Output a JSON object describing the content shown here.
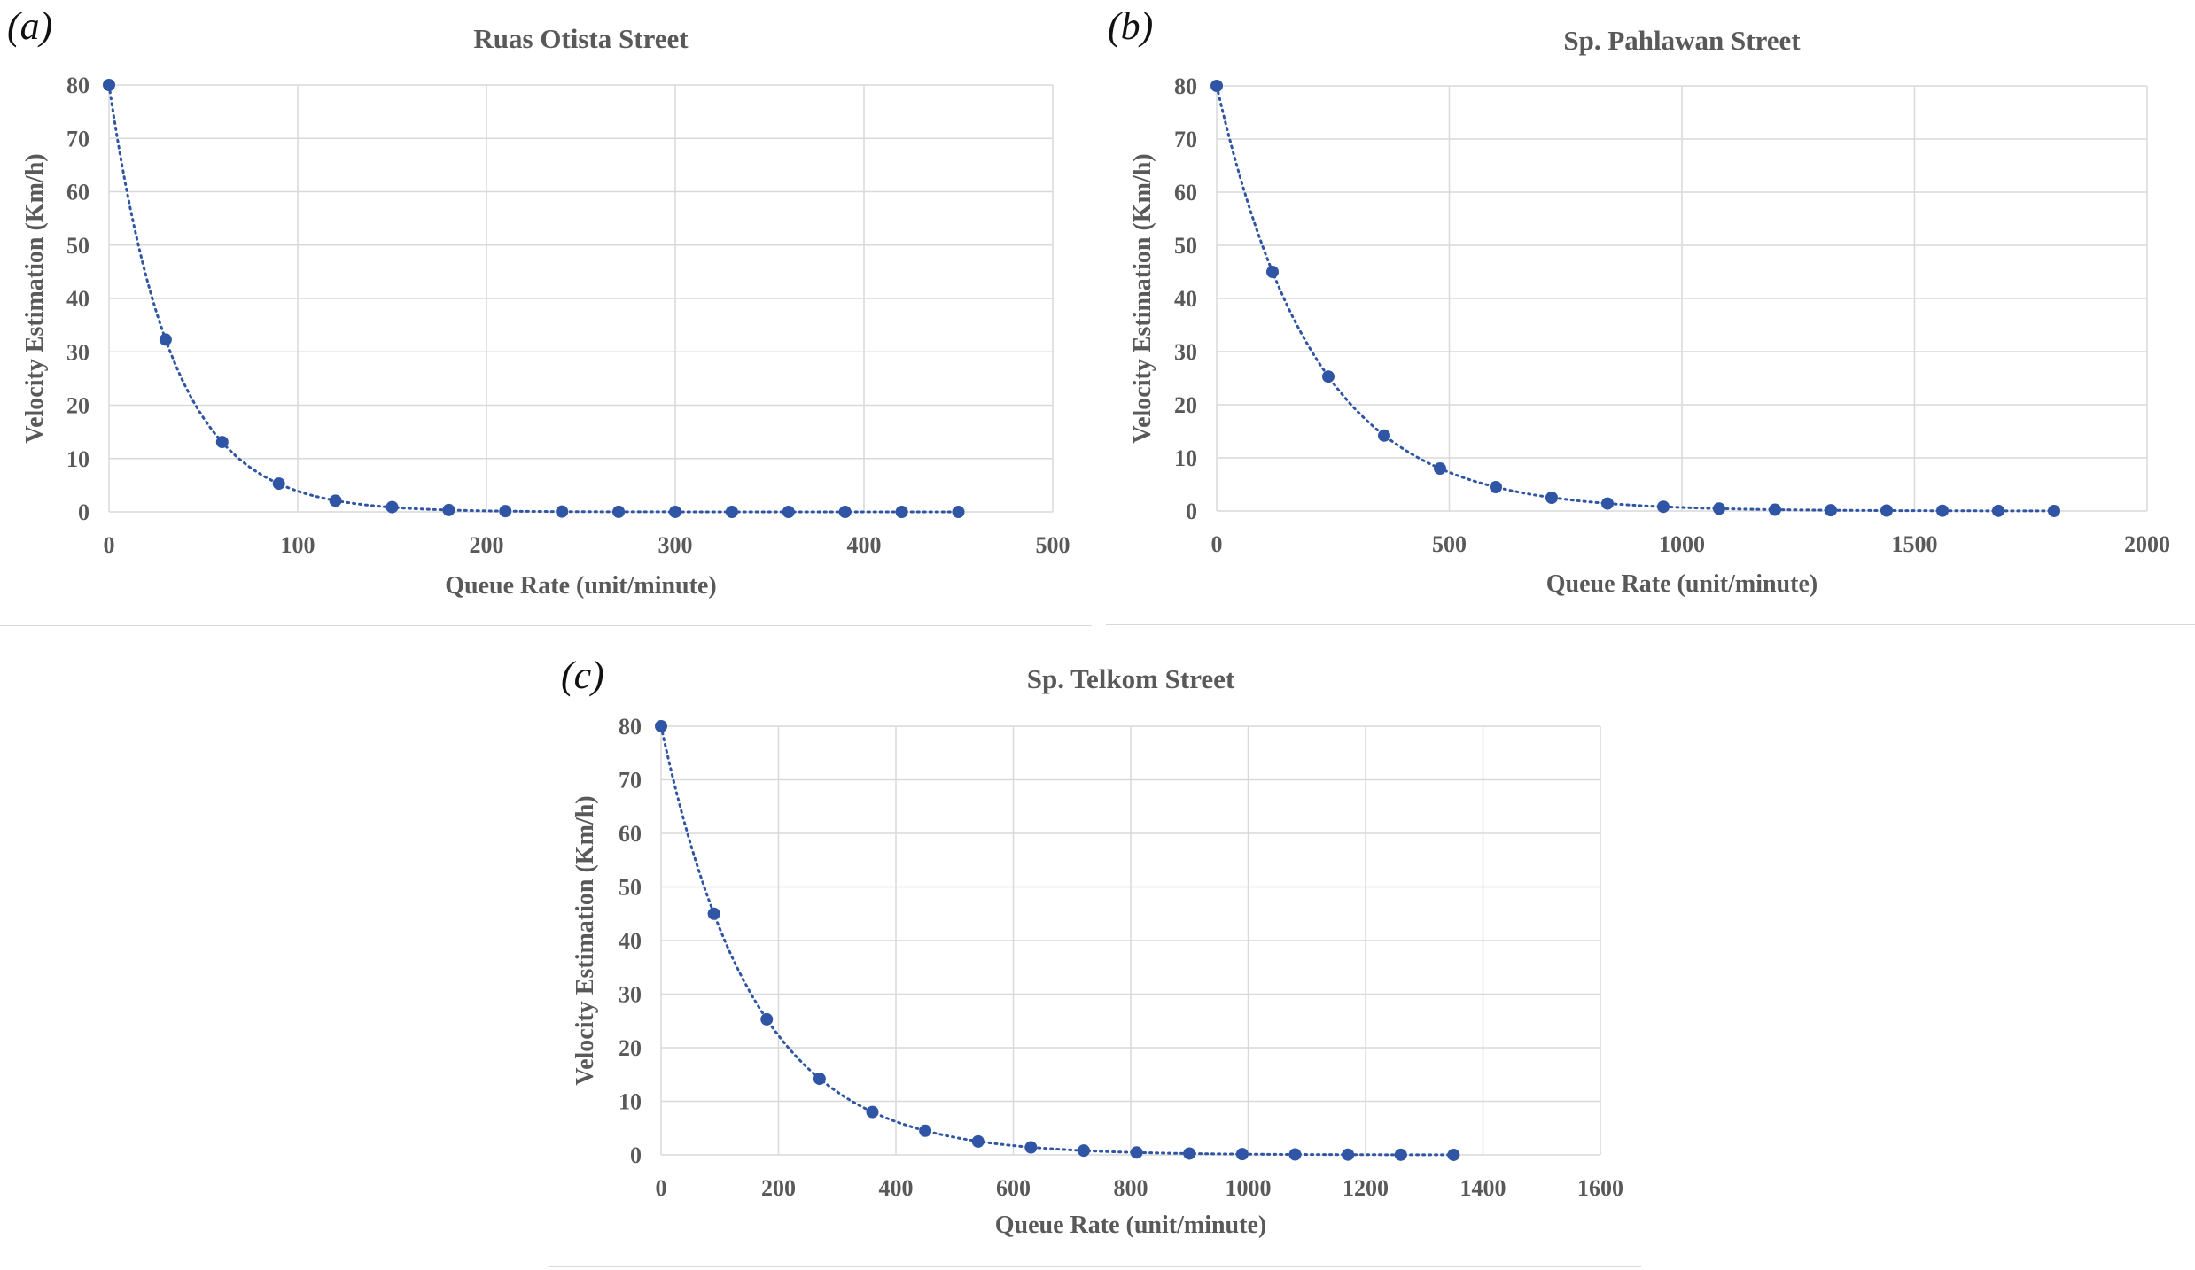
{
  "panels": [
    {
      "letter": "(a)",
      "chart_data": {
        "type": "scatter",
        "title": "Ruas Otista Street",
        "xlabel": "Queue Rate (unit/minute)",
        "ylabel": "Velocity Estimation (Km/h)",
        "xlim": [
          0,
          500
        ],
        "ylim": [
          0,
          80
        ],
        "xticks": [
          0,
          100,
          200,
          300,
          400,
          500
        ],
        "yticks": [
          0,
          10,
          20,
          30,
          40,
          50,
          60,
          70,
          80
        ],
        "grid": true,
        "trendline": "exponential, dotted",
        "series": [
          {
            "x": [
              0,
              30,
              60,
              90,
              120,
              150,
              180,
              210,
              240,
              270,
              300,
              330,
              360,
              390,
              420,
              450
            ],
            "y": [
              80,
              32.3,
              13.1,
              5.3,
              2.1,
              0.9,
              0.35,
              0.14,
              0.06,
              0.02,
              0.01,
              0,
              0,
              0,
              0,
              0
            ]
          }
        ]
      }
    },
    {
      "letter": "(b)",
      "chart_data": {
        "type": "scatter",
        "title": "Sp. Pahlawan Street",
        "xlabel": "Queue Rate (unit/minute)",
        "ylabel": "Velocity Estimation (Km/h)",
        "xlim": [
          0,
          2000
        ],
        "ylim": [
          0,
          80
        ],
        "xticks": [
          0,
          500,
          1000,
          1500,
          2000
        ],
        "yticks": [
          0,
          10,
          20,
          30,
          40,
          50,
          60,
          70,
          80
        ],
        "grid": true,
        "trendline": "exponential, dotted",
        "series": [
          {
            "x": [
              0,
              120,
              240,
              360,
              480,
              600,
              720,
              840,
              960,
              1080,
              1200,
              1320,
              1440,
              1560,
              1680,
              1800
            ],
            "y": [
              80,
              45,
              25.3,
              14.2,
              8,
              4.5,
              2.5,
              1.4,
              0.8,
              0.45,
              0.25,
              0.14,
              0.08,
              0.05,
              0.03,
              0.01
            ]
          }
        ]
      }
    },
    {
      "letter": "(c)",
      "chart_data": {
        "type": "scatter",
        "title": "Sp. Telkom Street",
        "xlabel": "Queue Rate (unit/minute)",
        "ylabel": "Velocity Estimation (Km/h)",
        "xlim": [
          0,
          1600
        ],
        "ylim": [
          0,
          80
        ],
        "xticks": [
          0,
          200,
          400,
          600,
          800,
          1000,
          1200,
          1400,
          1600
        ],
        "yticks": [
          0,
          10,
          20,
          30,
          40,
          50,
          60,
          70,
          80
        ],
        "grid": true,
        "trendline": "exponential, dotted",
        "series": [
          {
            "x": [
              0,
              90,
              180,
              270,
              360,
              450,
              540,
              630,
              720,
              810,
              900,
              990,
              1080,
              1170,
              1260,
              1350
            ],
            "y": [
              80,
              45,
              25.3,
              14.2,
              8,
              4.5,
              2.5,
              1.4,
              0.8,
              0.45,
              0.25,
              0.14,
              0.08,
              0.05,
              0.03,
              0.01
            ]
          }
        ]
      }
    }
  ],
  "style": {
    "marker_color": "#2f55a4",
    "trend_color": "#2f55a4",
    "grid_color": "#d9d9d9",
    "text_color": "#595959",
    "title_color": "#595959"
  }
}
